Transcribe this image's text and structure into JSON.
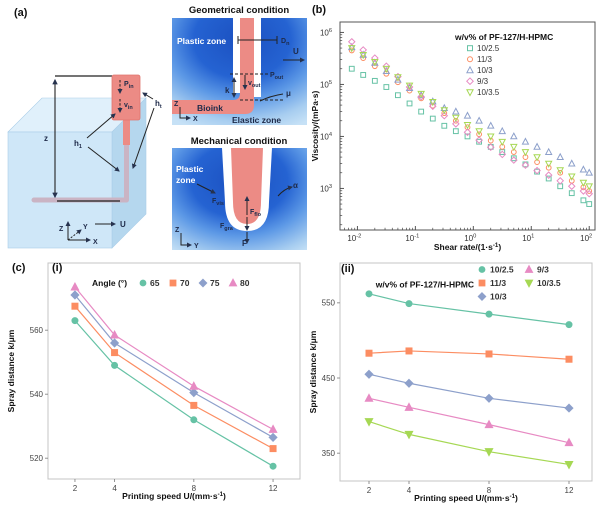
{
  "figure": {
    "tags": {
      "a": "(a)",
      "b": "(b)",
      "c": "(c)",
      "ci": "(i)",
      "cii": "(ii)"
    },
    "colors": {
      "series_green": "#66c2a5",
      "series_orange": "#fc8d62",
      "series_slate": "#8da0cb",
      "series_pink": "#e78ac3",
      "series_yellowgreen": "#a6d854",
      "bioink_salmon": "#ec8b85",
      "plastic_zone_blue": "#1b50c0",
      "bath_blue": "#cde7f8",
      "elastic_zone_blue": "#c6e1f6"
    },
    "panel_a": {
      "left": {
        "z": "z",
        "p_in": {
          "main": "P",
          "sub": "in"
        },
        "v_in": {
          "main": "v",
          "sub": "in"
        },
        "h_left": {
          "main": "h",
          "sub": "1"
        },
        "h_right": {
          "main": "h",
          "sub": "t"
        },
        "axis_z": "Z",
        "axis_y": "Y",
        "axis_x": "X",
        "u": "U"
      },
      "geometrical": {
        "title": "Geometrical condition",
        "plastic_zone": "Plastic zone",
        "elastic_zone": "Elastic zone",
        "bioink": "Bioink",
        "d_n": {
          "main": "D",
          "sub": "n"
        },
        "u": "U",
        "p_out": {
          "main": "P",
          "sub": "out"
        },
        "v_out": {
          "main": "v",
          "sub": "out"
        },
        "k": "k",
        "mu": "μ",
        "axis_z": "Z",
        "axis_x": "X"
      },
      "mechanical": {
        "title": "Mechanical condition",
        "plastic_zone_l1": "Plastic",
        "plastic_zone_l2": "zone",
        "alpha": "α",
        "f_vis": {
          "main": "F",
          "sub": "vis"
        },
        "f_flo": {
          "main": "F",
          "sub": "flo"
        },
        "f_gra": {
          "main": "F",
          "sub": "gra"
        },
        "f": "F",
        "axis_z": "Z",
        "axis_y": "Y"
      }
    }
  },
  "chart_data": [
    {
      "id": "viscosity",
      "type": "scatter",
      "scale": "log-log",
      "xlabel": {
        "pre": "Shear rate/(1·s",
        "sup": "-1",
        "post": ")"
      },
      "ylabel": "Viscosity/(mPa·s)",
      "xlim_exp": [
        -2.3,
        2.1
      ],
      "ylim_exp": [
        2.2,
        6.2
      ],
      "x_ticks_exp": [
        -2,
        -1,
        0,
        1,
        2
      ],
      "y_ticks_exp": [
        3,
        4,
        5,
        6
      ],
      "grid": false,
      "legend_title": "w/v% of PF-127/H-HPMC",
      "x": [
        0.008,
        0.0126,
        0.02,
        0.0316,
        0.05,
        0.0794,
        0.126,
        0.2,
        0.316,
        0.5,
        0.794,
        1.26,
        2,
        3.16,
        5,
        7.94,
        12.6,
        20,
        31.6,
        50,
        79.4,
        100
      ],
      "series": [
        {
          "name": "10/2.5",
          "marker": "square",
          "color": "#66c2a5",
          "y": [
            200000,
            152000,
            117000,
            89000,
            62000,
            43000,
            30000,
            22000,
            16000,
            12600,
            10000,
            7900,
            6300,
            5000,
            3800,
            2900,
            2100,
            1550,
            1100,
            810,
            590,
            500
          ]
        },
        {
          "name": "11/3",
          "marker": "circle",
          "color": "#fc8d62",
          "y": [
            450000,
            320000,
            224000,
            160000,
            110000,
            76000,
            54000,
            39000,
            28000,
            20000,
            15000,
            11000,
            8300,
            6300,
            5000,
            4000,
            3200,
            2500,
            2000,
            1400,
            1050,
            890
          ]
        },
        {
          "name": "10/3",
          "marker": "triangle-up",
          "color": "#8da0cb",
          "y": [
            520000,
            370000,
            260000,
            180000,
            123000,
            85000,
            62000,
            47000,
            35000,
            30000,
            25000,
            20000,
            16000,
            12600,
            10000,
            7900,
            6300,
            5000,
            4000,
            3000,
            2300,
            2000
          ]
        },
        {
          "name": "9/3",
          "marker": "diamond",
          "color": "#e78ac3",
          "y": [
            660000,
            460000,
            321000,
            224000,
            141000,
            89000,
            58000,
            38000,
            25000,
            17400,
            12000,
            8500,
            6200,
            4500,
            3500,
            2800,
            2200,
            1800,
            1400,
            1100,
            890,
            790
          ]
        },
        {
          "name": "10/3.5",
          "marker": "triangle-down",
          "color": "#a6d854",
          "y": [
            500000,
            369000,
            271000,
            200000,
            138000,
            95000,
            66000,
            46000,
            32000,
            22900,
            16600,
            12600,
            10000,
            7900,
            6300,
            5000,
            4000,
            3000,
            2240,
            1700,
            1290,
            1100
          ]
        }
      ]
    },
    {
      "id": "spray_angle",
      "panel_label": "(i)",
      "type": "line",
      "xlabel": {
        "pre": "Printing speed U/(mm·s",
        "sup": "-1",
        "post": ")"
      },
      "ylabel": "Spray distance k/μm",
      "x": [
        2,
        4,
        8,
        12
      ],
      "x_ticks": [
        2,
        4,
        8,
        12
      ],
      "y_ticks": [
        520,
        540,
        560
      ],
      "xlim": [
        0.64,
        13.36
      ],
      "ylim": [
        513.5,
        581
      ],
      "grid": false,
      "legend_title": "Angle (°)",
      "series": [
        {
          "name": "65",
          "marker": "circle",
          "color": "#66c2a5",
          "y": [
            563,
            549,
            532,
            517.5
          ]
        },
        {
          "name": "70",
          "marker": "square",
          "color": "#fc8d62",
          "y": [
            567.5,
            553,
            536.5,
            523
          ]
        },
        {
          "name": "75",
          "marker": "diamond",
          "color": "#8da0cb",
          "y": [
            571,
            556,
            540.5,
            526.5
          ]
        },
        {
          "name": "80",
          "marker": "triangle-up",
          "color": "#e78ac3",
          "y": [
            573.5,
            558.5,
            542.5,
            529
          ]
        }
      ]
    },
    {
      "id": "spray_conc",
      "panel_label": "(ii)",
      "type": "line",
      "xlabel": {
        "pre": "Printing speed U/(mm·s",
        "sup": "-1",
        "post": ")"
      },
      "ylabel": "Spray distance k/μm",
      "x": [
        2,
        4,
        8,
        12
      ],
      "x_ticks": [
        2,
        4,
        8,
        12
      ],
      "y_ticks": [
        350,
        450,
        550
      ],
      "xlim": [
        0.55,
        13.15
      ],
      "ylim": [
        313,
        603
      ],
      "grid": false,
      "legend_title": "w/v% of PF-127/H-HPMC",
      "series": [
        {
          "name": "10/2.5",
          "marker": "circle",
          "color": "#66c2a5",
          "y": [
            562,
            549,
            535,
            521
          ]
        },
        {
          "name": "11/3",
          "marker": "square",
          "color": "#fc8d62",
          "y": [
            483,
            486,
            482,
            475
          ]
        },
        {
          "name": "10/3",
          "marker": "diamond",
          "color": "#8da0cb",
          "y": [
            455,
            443,
            423,
            410
          ]
        },
        {
          "name": "9/3",
          "marker": "triangle-up",
          "color": "#e78ac3",
          "y": [
            423,
            411,
            388,
            364
          ]
        },
        {
          "name": "10/3.5",
          "marker": "triangle-down",
          "color": "#a6d854",
          "y": [
            392,
            375,
            352,
            335
          ]
        }
      ]
    }
  ]
}
